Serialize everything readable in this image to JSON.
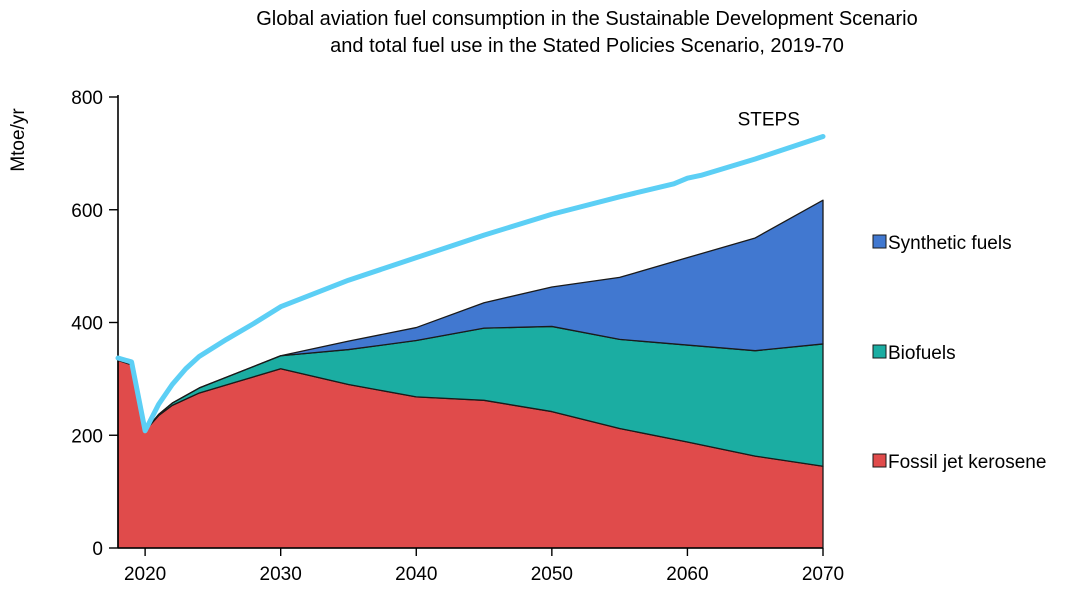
{
  "chart_data": {
    "type": "area",
    "title": "Global aviation fuel consumption in the Sustainable Development Scenario and total fuel use in the Stated Policies Scenario, 2019-70",
    "title_lines": [
      "Global aviation fuel consumption in the Sustainable Development Scenario",
      "and total fuel use in the Stated Policies Scenario, 2019-70"
    ],
    "xlabel": "",
    "ylabel": "Mtoe/yr",
    "xlim": [
      2018,
      2070
    ],
    "ylim": [
      0,
      800
    ],
    "x_ticks": [
      2020,
      2030,
      2040,
      2050,
      2060,
      2070
    ],
    "y_ticks": [
      0,
      200,
      400,
      600,
      800
    ],
    "grid": false,
    "legend_position": "right",
    "stacked": true,
    "x": [
      2018,
      2019,
      2020,
      2021,
      2022,
      2024,
      2030,
      2035,
      2040,
      2045,
      2050,
      2055,
      2060,
      2065,
      2070
    ],
    "series": [
      {
        "name": "Fossil jet kerosene",
        "color": "#e04b4b",
        "values": [
          333,
          325,
          208,
          235,
          253,
          275,
          318,
          290,
          268,
          262,
          242,
          212,
          188,
          163,
          145
        ]
      },
      {
        "name": "Biofuels",
        "color": "#1bada2",
        "values": [
          0,
          0,
          0,
          2,
          4,
          9,
          23,
          62,
          100,
          128,
          151,
          158,
          172,
          187,
          217
        ]
      },
      {
        "name": "Synthetic fuels",
        "color": "#4178d0",
        "values": [
          0,
          0,
          0,
          0,
          0,
          0,
          0,
          15,
          23,
          45,
          70,
          110,
          155,
          200,
          255
        ]
      }
    ],
    "line_series": {
      "name": "STEPS",
      "color": "#5ccff5",
      "x": [
        2018,
        2019,
        2020,
        2021,
        2022,
        2023,
        2024,
        2026,
        2028,
        2030,
        2035,
        2040,
        2045,
        2050,
        2055,
        2059,
        2060,
        2061,
        2065,
        2070
      ],
      "values": [
        337,
        330,
        208,
        255,
        290,
        318,
        340,
        370,
        398,
        428,
        475,
        515,
        555,
        592,
        623,
        646,
        656,
        661,
        690,
        730
      ]
    },
    "annotation": {
      "text": "STEPS",
      "x": 2066,
      "y": 762
    },
    "legend_order": [
      "Synthetic fuels",
      "Biofuels",
      "Fossil jet kerosene"
    ]
  }
}
